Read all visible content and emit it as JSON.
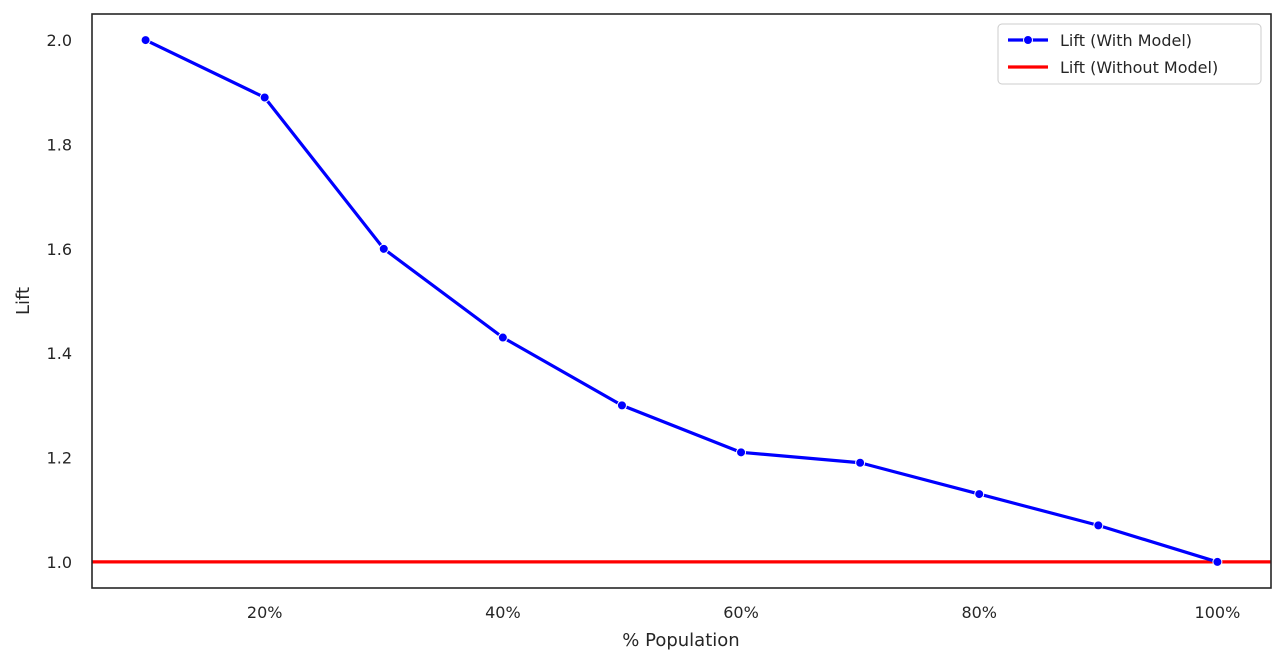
{
  "chart_data": {
    "type": "line",
    "title": "",
    "xlabel": "% Population",
    "ylabel": "Lift",
    "x": [
      10,
      20,
      30,
      40,
      50,
      60,
      70,
      80,
      90,
      100
    ],
    "xlim": [
      5.5,
      104.5
    ],
    "ylim": [
      0.95,
      2.05
    ],
    "xticks": [
      20,
      40,
      60,
      80,
      100
    ],
    "xtick_labels": [
      "20%",
      "40%",
      "60%",
      "80%",
      "100%"
    ],
    "yticks": [
      1.0,
      1.2,
      1.4,
      1.6,
      1.8,
      2.0
    ],
    "ytick_labels": [
      "1.0",
      "1.2",
      "1.4",
      "1.6",
      "1.8",
      "2.0"
    ],
    "grid": false,
    "legend_position": "top-right",
    "series": [
      {
        "name": "Lift (With Model)",
        "color": "#0000ff",
        "marker": "circle",
        "values": [
          2.0,
          1.89,
          1.6,
          1.43,
          1.3,
          1.21,
          1.19,
          1.13,
          1.07,
          1.0
        ]
      }
    ],
    "reference_lines": [
      {
        "name": "Lift (Without Model)",
        "color": "#ff0000",
        "orientation": "horizontal",
        "y": 1.0
      }
    ]
  }
}
